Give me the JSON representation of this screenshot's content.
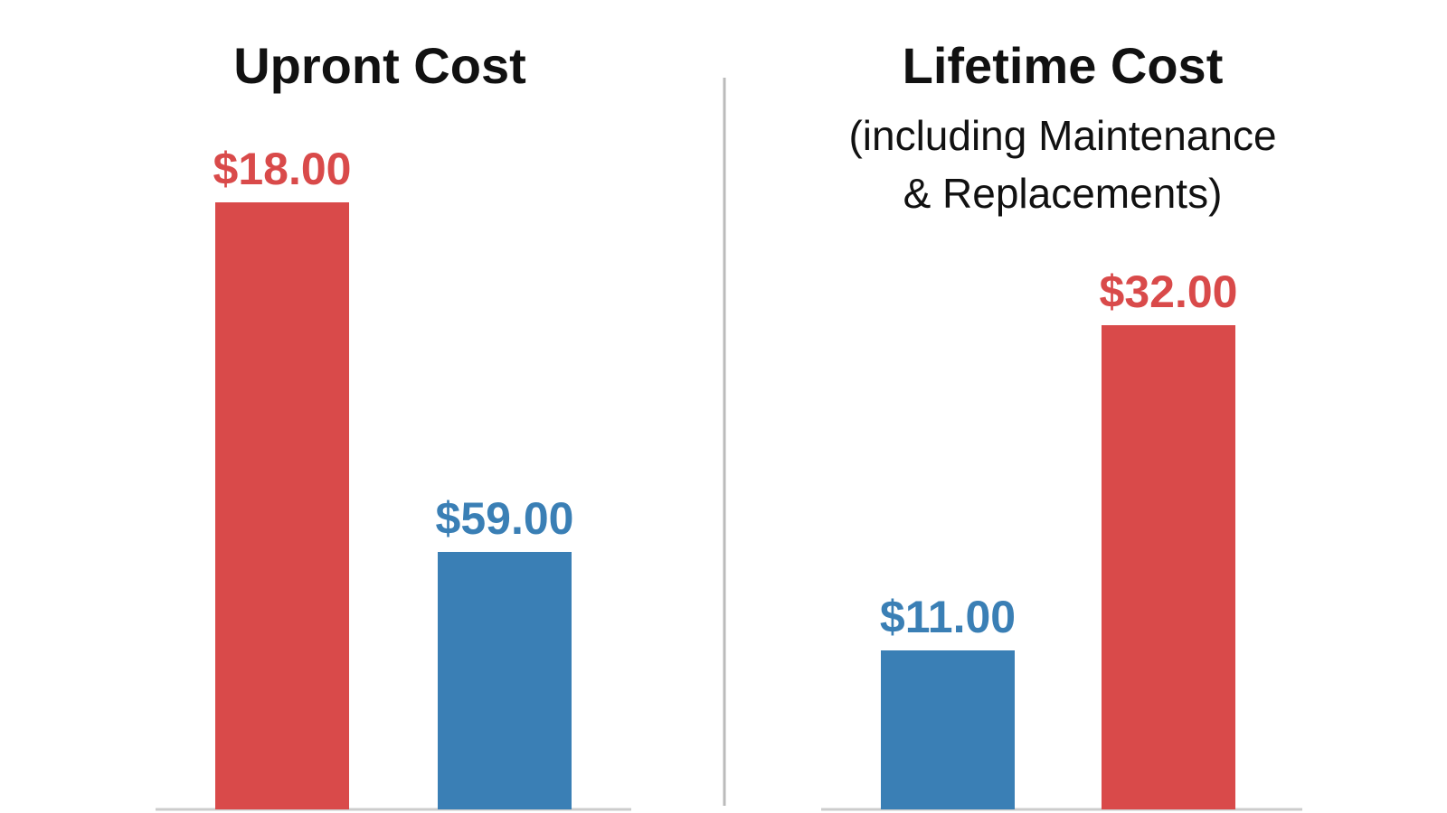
{
  "chart_data": [
    {
      "type": "bar",
      "title": "Upront Cost",
      "subtitle": "",
      "categories": [
        "",
        ""
      ],
      "values": [
        18.0,
        59.0
      ],
      "data_labels": [
        "$18.00",
        "$59.00"
      ],
      "colors": [
        "#d94a4a",
        "#3a7fb5"
      ],
      "ylim": [
        0,
        18.0
      ],
      "grid": false
    },
    {
      "type": "bar",
      "title": "Lifetime Cost",
      "subtitle": [
        "(including Maintenance",
        "& Replacements)"
      ],
      "categories": [
        "",
        ""
      ],
      "values": [
        11.0,
        32.0
      ],
      "data_labels": [
        "$11.00",
        "$32.00"
      ],
      "colors": [
        "#3a7fb5",
        "#d94a4a"
      ],
      "ylim": [
        0,
        32.0
      ],
      "grid": false
    }
  ],
  "theme": {
    "background": "#ffffff",
    "axis_color": "#cccccc",
    "divider_color": "#bbbbbb",
    "text_color": "#111111"
  }
}
